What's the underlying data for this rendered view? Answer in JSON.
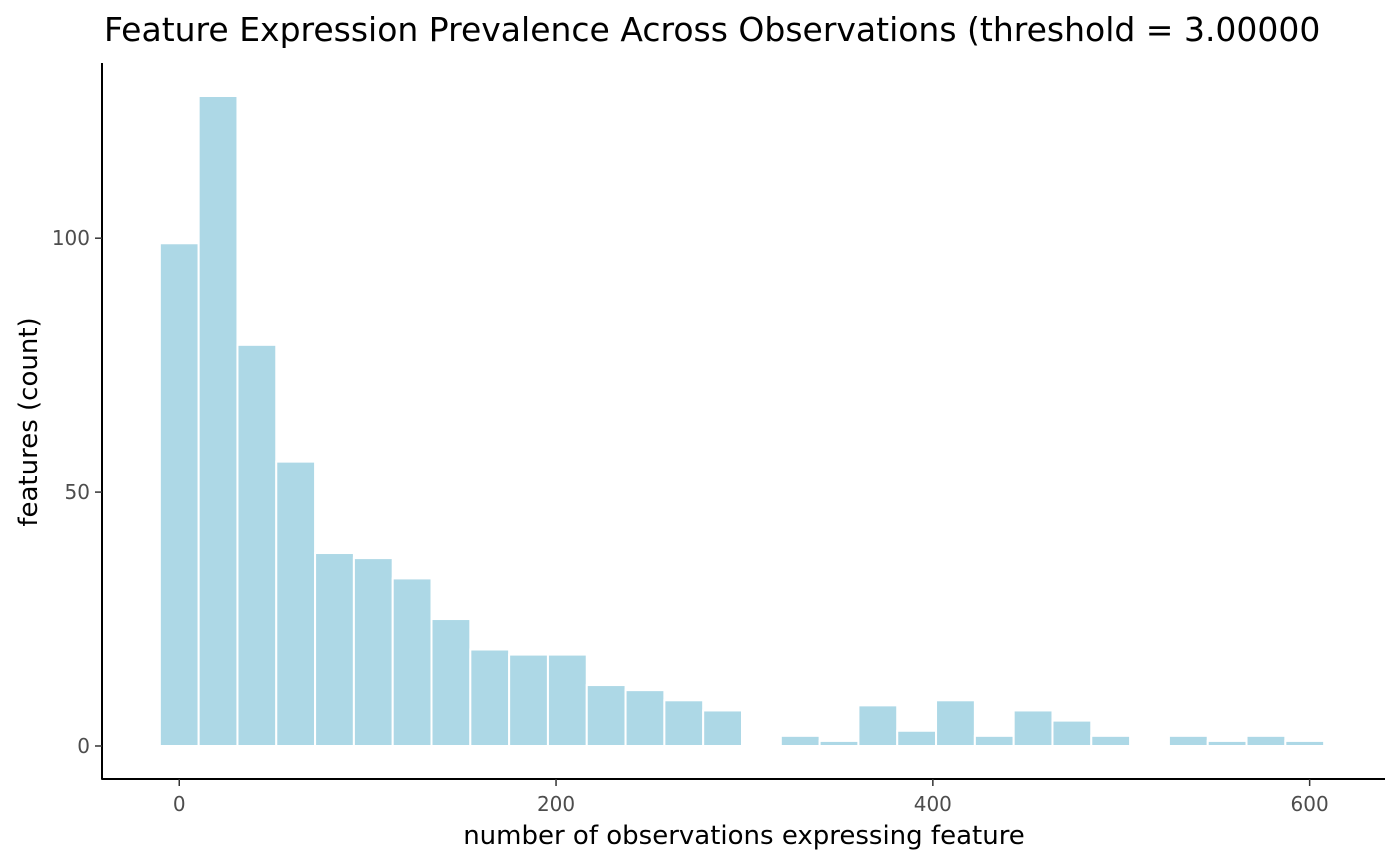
{
  "chart_data": {
    "type": "bar",
    "title": "Feature Expression Prevalence Across Observations (threshold = 3.00000",
    "xlabel": "number of observations expressing feature",
    "ylabel": "features (count)",
    "x_ticks": [
      "0",
      "200",
      "400",
      "600"
    ],
    "y_ticks": [
      "0",
      "50",
      "100"
    ],
    "xlim": [
      -41,
      640
    ],
    "ylim": [
      -6.5,
      134.5
    ],
    "bin_width": 20.6,
    "bin_centers": [
      0,
      20.6,
      41.2,
      61.8,
      82.4,
      103,
      123.6,
      144.2,
      164.8,
      185.4,
      206,
      226.6,
      247.2,
      267.8,
      288.4,
      309,
      329.6,
      350.2,
      370.8,
      391.4,
      412,
      432.6,
      453.2,
      473.8,
      494.4,
      515,
      535.6,
      556.2,
      576.8,
      597.4
    ],
    "values": [
      99,
      128,
      79,
      56,
      38,
      37,
      33,
      25,
      19,
      18,
      18,
      12,
      11,
      9,
      7,
      0,
      2,
      1,
      8,
      3,
      9,
      2,
      7,
      5,
      2,
      0,
      2,
      1,
      2,
      1
    ],
    "bar_color": "#ADD8E6",
    "bar_edge_color": "#FFFFFF",
    "grid": false,
    "legend": "none"
  }
}
